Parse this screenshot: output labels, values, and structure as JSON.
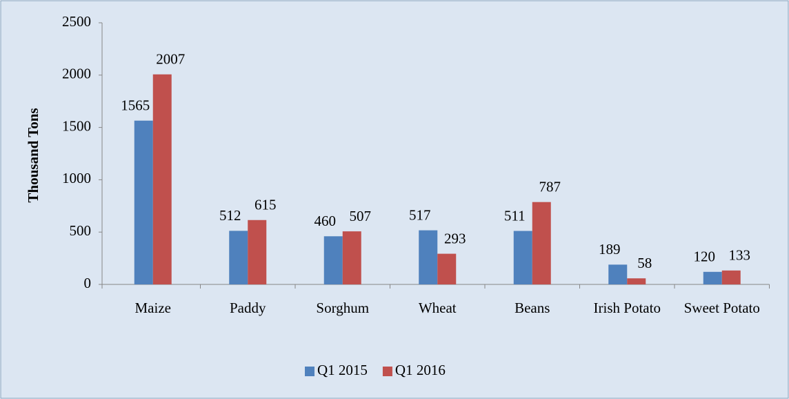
{
  "chart_data": {
    "type": "bar",
    "y_label": "Thousand Tons",
    "categories": [
      "Maize",
      "Paddy",
      "Sorghum",
      "Wheat",
      "Beans",
      "Irish Potato",
      "Sweet Potato"
    ],
    "series": [
      {
        "name": "Q1 2015",
        "color": "#4f81bd",
        "values": [
          1565,
          512,
          460,
          517,
          511,
          189,
          120
        ]
      },
      {
        "name": "Q1 2016",
        "color": "#c0504d",
        "values": [
          2007,
          615,
          507,
          293,
          787,
          58,
          133
        ]
      }
    ],
    "ylim": [
      0,
      2500
    ],
    "yticks": [
      0,
      500,
      1000,
      1500,
      2000,
      2500
    ],
    "grid": false,
    "legend": "bottom"
  }
}
